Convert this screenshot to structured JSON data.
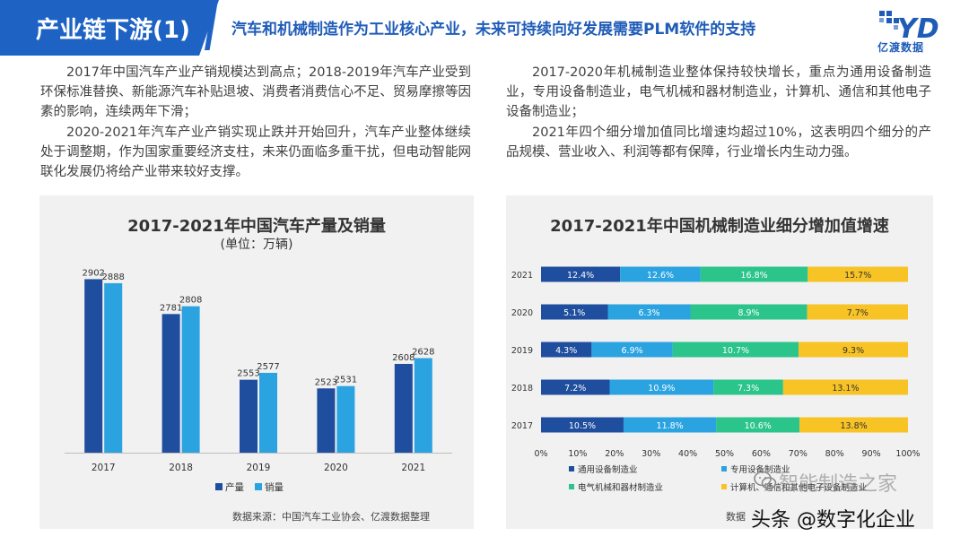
{
  "header": {
    "title": "产业链下游(1)",
    "subtitle": "汽车和机械制造作为工业核心产业，未来可持续向好发展需要PLM软件的支持",
    "logo_text": "亿渡数据",
    "logo_mark": "YD"
  },
  "left_text": {
    "p1": "2017年中国汽车产业产销规模达到高点；2018-2019年汽车产业受到环保标准替换、新能源汽车补贴退坡、消费者消费信心不足、贸易摩擦等因素的影响，连续两年下滑；",
    "p2": "2020-2021年汽车产业产销实现止跌并开始回升，汽车产业整体继续处于调整期，作为国家重要经济支柱，未来仍面临多重干扰，但电动智能网联化发展仍将给产业带来较好支撑。"
  },
  "right_text": {
    "p1": "2017-2020年机械制造业整体保持较快增长，重点为通用设备制造业，专用设备制造业，电气机械和器材制造业，计算机、通信和其他电子设备制造业；",
    "p2": "2021年四个细分增加值同比增速均超过10%，这表明四个细分的产品规模、营业收入、利润等都有保障，行业增长内生动力强。"
  },
  "left_chart": {
    "title": "2017-2021年中国汽车产量及销量",
    "subtitle": "(单位：万辆)",
    "source": "数据来源：中国汽车工业协会、亿渡数据整理"
  },
  "right_chart": {
    "title": "2017-2021年中国机械制造业细分增加值增速",
    "source": "数据"
  },
  "watermark": {
    "line1": "智能制造之家",
    "line2": "头条 @数字化企业"
  },
  "colors": {
    "brand_blue": "#1e63c4",
    "production": "#1f4e9e",
    "sales": "#2aa3e0",
    "seg1": "#1f4e9e",
    "seg2": "#2aa3e0",
    "seg3": "#2bc48a",
    "seg4": "#f7c325"
  },
  "chart_data": [
    {
      "type": "bar",
      "title": "2017-2021年中国汽车产量及销量",
      "subtitle": "(单位：万辆)",
      "categories": [
        "2017",
        "2018",
        "2019",
        "2020",
        "2021"
      ],
      "series": [
        {
          "name": "产量",
          "values": [
            2902,
            2781,
            2553,
            2523,
            2608
          ]
        },
        {
          "name": "销量",
          "values": [
            2888,
            2808,
            2577,
            2531,
            2628
          ]
        }
      ],
      "legend": "bottom"
    },
    {
      "type": "bar",
      "orientation": "horizontal-stacked-percent",
      "title": "2017-2021年中国机械制造业细分增加值增速",
      "categories": [
        "2021",
        "2020",
        "2019",
        "2018",
        "2017"
      ],
      "series": [
        {
          "name": "通用设备制造业",
          "values": [
            12.4,
            5.1,
            4.3,
            7.2,
            10.5
          ],
          "labels": [
            "12.4%",
            "5.1%",
            "4.3%",
            "7.2%",
            "10.5%"
          ]
        },
        {
          "name": "专用设备制造业",
          "values": [
            12.6,
            6.3,
            6.9,
            10.9,
            11.8
          ],
          "labels": [
            "12.6%",
            "6.3%",
            "6.9%",
            "10.9%",
            "11.8%"
          ]
        },
        {
          "name": "电气机械和器材制造业",
          "values": [
            16.8,
            8.9,
            10.7,
            7.3,
            10.6
          ],
          "labels": [
            "16.8%",
            "8.9%",
            "10.7%",
            "7.3%",
            "10.6%"
          ]
        },
        {
          "name": "计算机、通信和其他电子设备制造业",
          "values": [
            15.7,
            7.7,
            9.3,
            13.1,
            13.8
          ],
          "labels": [
            "15.7%",
            "7.7%",
            "9.3%",
            "13.1%",
            "13.8%"
          ]
        }
      ],
      "x_ticks": [
        "0%",
        "10%",
        "20%",
        "30%",
        "40%",
        "50%",
        "60%",
        "70%",
        "80%",
        "90%",
        "100%"
      ],
      "xlim": [
        0,
        100
      ],
      "legend": "bottom"
    }
  ]
}
